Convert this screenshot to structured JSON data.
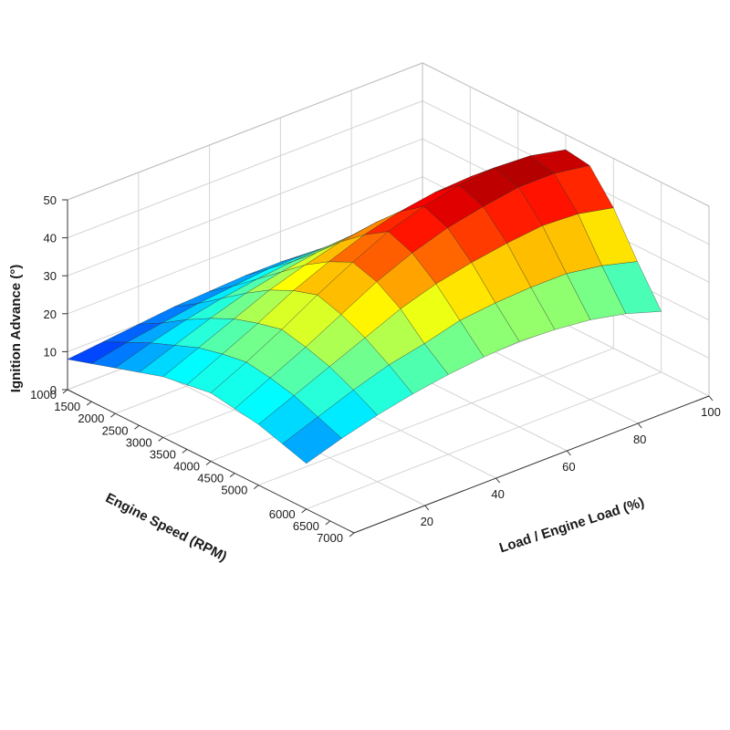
{
  "chart_data": {
    "type": "surface",
    "title": "",
    "xlabel": "Engine Speed (RPM)",
    "ylabel": "Load / Engine Load (%)",
    "zlabel": "Ignition Advance (°)",
    "x_ticks": [
      1000,
      1500,
      2000,
      2500,
      3000,
      3500,
      4000,
      4500,
      5000,
      6000,
      6500,
      7000
    ],
    "y_ticks": [
      20,
      40,
      60,
      80,
      100
    ],
    "z_ticks": [
      0,
      10,
      20,
      30,
      40,
      50
    ],
    "xlim": [
      1000,
      7000
    ],
    "ylim": [
      0,
      100
    ],
    "zlim": [
      0,
      50
    ],
    "grid": true,
    "colormap": "jet",
    "surface": {
      "x": [
        1000,
        1500,
        2000,
        2500,
        3000,
        3500,
        4000,
        4500,
        5000,
        5500,
        6000
      ],
      "y": [
        0,
        10,
        20,
        30,
        40,
        50,
        60,
        70,
        80,
        90,
        100
      ],
      "z": [
        [
          8,
          10,
          12,
          14,
          16,
          17,
          18,
          17,
          16,
          14,
          12
        ],
        [
          9,
          12,
          15,
          17.5,
          20,
          21.5,
          22.5,
          21.5,
          20,
          17.5,
          15
        ],
        [
          10,
          13.5,
          17.5,
          21,
          24,
          26,
          27.5,
          26,
          24,
          21,
          17.5
        ],
        [
          11,
          15,
          19.5,
          24,
          28,
          31,
          33,
          31,
          28,
          24,
          19.5
        ],
        [
          11.5,
          16,
          21,
          26,
          31,
          35,
          38,
          36,
          32,
          26,
          21
        ],
        [
          12,
          17,
          22,
          27.5,
          33.5,
          38.5,
          42.5,
          40,
          35,
          28.5,
          22
        ],
        [
          12,
          17,
          22.5,
          28.5,
          35,
          41,
          45.5,
          43,
          37,
          29.5,
          22.5
        ],
        [
          11.5,
          16.5,
          22,
          28,
          35.5,
          42.5,
          47.5,
          45,
          38.5,
          30,
          22
        ],
        [
          10.5,
          15.5,
          21,
          27,
          35,
          43,
          48.5,
          46.5,
          39.5,
          30,
          21
        ],
        [
          9,
          13.5,
          19,
          25.5,
          33.5,
          42,
          48,
          46.5,
          39,
          28.5,
          19
        ],
        [
          7,
          11,
          16.5,
          23,
          31,
          39.5,
          46,
          45,
          37,
          26,
          16
        ]
      ]
    }
  }
}
